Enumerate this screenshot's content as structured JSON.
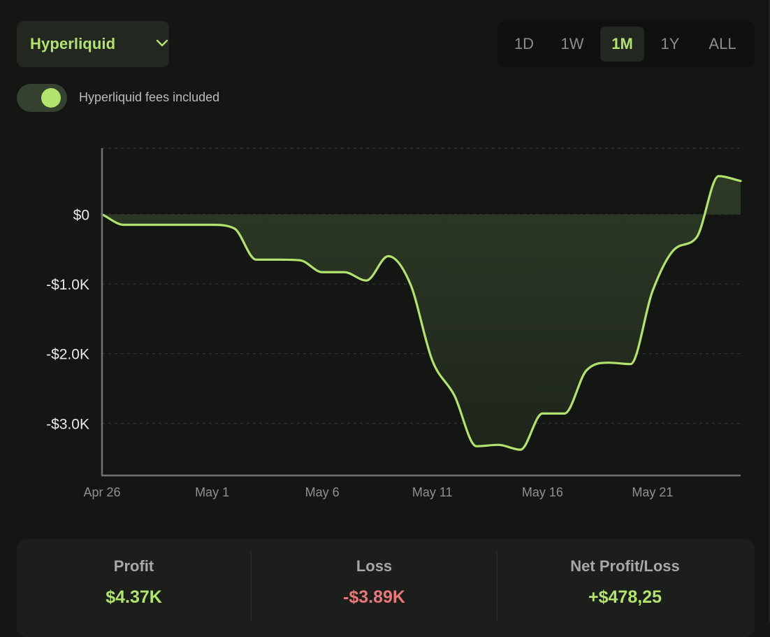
{
  "exchange": {
    "label": "Hyperliquid",
    "icon": "chevron-down-icon"
  },
  "time_ranges": [
    {
      "label": "1D",
      "active": false
    },
    {
      "label": "1W",
      "active": false
    },
    {
      "label": "1M",
      "active": true
    },
    {
      "label": "1Y",
      "active": false
    },
    {
      "label": "ALL",
      "active": false
    }
  ],
  "fees_toggle": {
    "label": "Hyperliquid fees included",
    "on": true
  },
  "colors": {
    "accent": "#b3e36f",
    "loss": "#e9787a",
    "fill": "#2a3424",
    "grid": "#3a3d3a",
    "axis": "#6f726f"
  },
  "chart_data": {
    "type": "area",
    "title": "",
    "xlabel": "",
    "ylabel": "",
    "x_tick_labels": [
      "Apr 26",
      "May 1",
      "May 6",
      "May 11",
      "May 16",
      "May 21"
    ],
    "x_tick_dates": [
      "2024-04-26",
      "2024-05-01",
      "2024-05-06",
      "2024-05-11",
      "2024-05-16",
      "2024-05-21"
    ],
    "y_tick_labels": [
      "$0",
      "-$1.0K",
      "-$2.0K",
      "-$3.0K"
    ],
    "y_tick_values": [
      0,
      -1000,
      -2000,
      -3000
    ],
    "ylim": [
      -3750,
      950
    ],
    "xlim": [
      "2024-04-26",
      "2024-05-25"
    ],
    "grid": true,
    "series": [
      {
        "x": [
          "2024-04-26",
          "2024-04-27",
          "2024-04-28",
          "2024-04-29",
          "2024-04-30",
          "2024-05-01",
          "2024-05-02",
          "2024-05-03",
          "2024-05-04",
          "2024-05-05",
          "2024-05-06",
          "2024-05-07",
          "2024-05-08",
          "2024-05-09",
          "2024-05-10",
          "2024-05-11",
          "2024-05-12",
          "2024-05-13",
          "2024-05-14",
          "2024-05-15",
          "2024-05-16",
          "2024-05-17",
          "2024-05-18",
          "2024-05-19",
          "2024-05-20",
          "2024-05-21",
          "2024-05-22",
          "2024-05-23",
          "2024-05-24",
          "2024-05-25"
        ],
        "values": [
          0,
          -150,
          -150,
          -150,
          -150,
          -150,
          -200,
          -650,
          -650,
          -660,
          -830,
          -830,
          -950,
          -600,
          -1000,
          -2100,
          -2600,
          -3330,
          -3310,
          -3380,
          -2860,
          -2860,
          -2240,
          -2130,
          -2150,
          -1100,
          -500,
          -330,
          550,
          480
        ]
      }
    ]
  },
  "summary": {
    "profit": {
      "label": "Profit",
      "value": "$4.37K"
    },
    "loss": {
      "label": "Loss",
      "value": "-$3.89K"
    },
    "net": {
      "label": "Net Profit/Loss",
      "value": "+$478,25"
    }
  }
}
